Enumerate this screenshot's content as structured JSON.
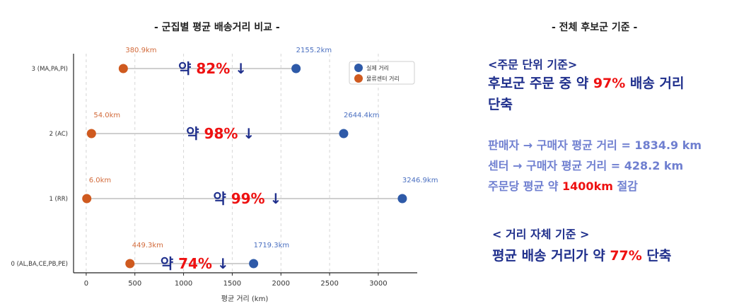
{
  "left_title": "-  군집별 평균 배송거리 비교  -",
  "right_title": "-  전체 후보군 기준  -",
  "chart_data": {
    "type": "dumbbell",
    "orientation": "horizontal",
    "categories": [
      "3 (MA,PA,PI)",
      "2 (AC)",
      "1 (RR)",
      "0 (AL,BA,CE,PB,PE)"
    ],
    "series": [
      {
        "name": "실제 거리",
        "color": "#2e5aa8",
        "label_color": "#4a6fc0",
        "values": [
          2155.2,
          2644.4,
          3246.9,
          1719.3
        ]
      },
      {
        "name": "물류센터 거리",
        "color": "#cf5a1f",
        "label_color": "#d26a3a",
        "values": [
          380.9,
          54.0,
          6.0,
          449.3
        ]
      }
    ],
    "value_labels": {
      "actual": [
        "2155.2km",
        "2644.4km",
        "3246.9km",
        "1719.3km"
      ],
      "center": [
        "380.9km",
        "54.0km",
        "6.0km",
        "449.3km"
      ]
    },
    "reductions": [
      {
        "prefix": "약",
        "value": "82%",
        "arrow": "↓"
      },
      {
        "prefix": "약",
        "value": "98%",
        "arrow": "↓"
      },
      {
        "prefix": "약",
        "value": "99%",
        "arrow": "↓"
      },
      {
        "prefix": "약",
        "value": "74%",
        "arrow": "↓"
      }
    ],
    "xlabel": "평균 거리 (km)",
    "xticks": [
      0,
      500,
      1000,
      1500,
      2000,
      2500,
      3000
    ],
    "xlim": [
      -130,
      3400
    ],
    "grid": "vertical-dashed",
    "legend_position": "top-right"
  },
  "summary": {
    "order_basis": {
      "heading": "<주문 단위 기준>",
      "line1_pre": "후보군 주문 중 약 ",
      "line1_hl": "97%",
      "line1_post": " 배송 거리",
      "line2": "단축"
    },
    "stats": {
      "seller": "판매자 → 구매자 평균 거리 = 1834.9 km",
      "center": "센터 → 구매자 평균 거리 = 428.2 km",
      "saving_pre": "주문당 평균 약 ",
      "saving_hl": "1400km",
      "saving_post": " 절감"
    },
    "distance_basis": {
      "heading": "< 거리 자체 기준 >",
      "line_pre": "평균 배송 거리가 약 ",
      "line_hl": "77%",
      "line_post": " 단축"
    }
  },
  "colors": {
    "navy": "#1f2f8c",
    "red": "#ee1111",
    "stat_blue": "#6f7fd0"
  }
}
